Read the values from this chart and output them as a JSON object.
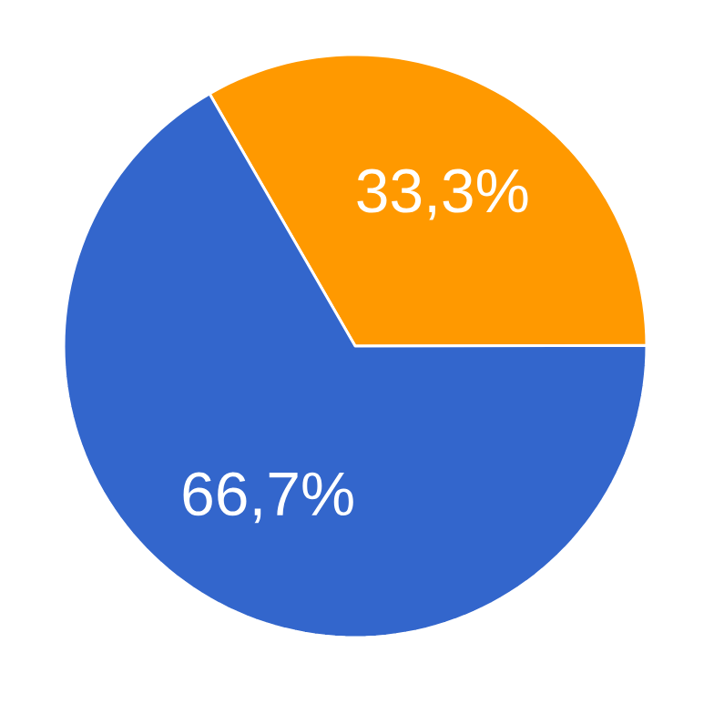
{
  "chart_data": {
    "type": "pie",
    "categories": [
      null,
      null
    ],
    "values": [
      33.3,
      66.7
    ],
    "colors": [
      "#ff9900",
      "#3366cc"
    ],
    "value_labels": [
      "33,3%",
      "66,7%"
    ]
  }
}
